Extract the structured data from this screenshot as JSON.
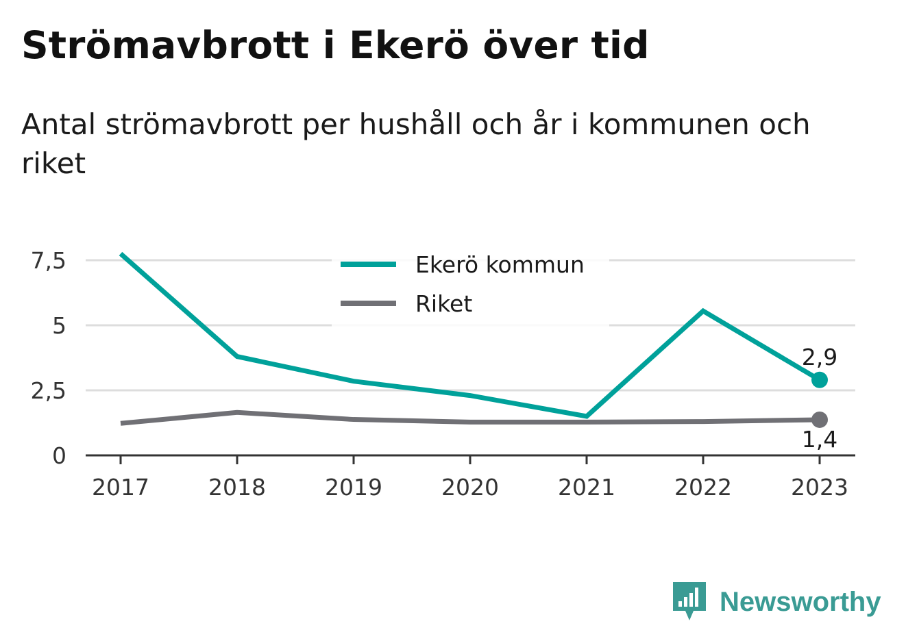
{
  "title": "Strömavbrott i Ekerö över tid",
  "subtitle": "Antal strömavbrott per hushåll och år i kommunen och riket",
  "brand": {
    "name": "Newsworthy",
    "icon": "newsworthy-logo-icon",
    "color": "#3a9b94"
  },
  "chart_data": {
    "type": "line",
    "x": [
      "2017",
      "2018",
      "2019",
      "2020",
      "2021",
      "2022",
      "2023"
    ],
    "y_ticks": [
      {
        "value": 0,
        "label": "0"
      },
      {
        "value": 2.5,
        "label": "2,5"
      },
      {
        "value": 5,
        "label": "5"
      },
      {
        "value": 7.5,
        "label": "7,5"
      }
    ],
    "ylim": [
      0,
      7.5
    ],
    "grid": true,
    "legend_position": "top-center",
    "series": [
      {
        "name": "Ekerö kommun",
        "color": "#00a19a",
        "values": [
          7.75,
          3.8,
          2.85,
          2.3,
          1.5,
          5.55,
          2.9
        ],
        "end_label": "2,9"
      },
      {
        "name": "Riket",
        "color": "#707075",
        "values": [
          1.23,
          1.65,
          1.38,
          1.28,
          1.28,
          1.3,
          1.37
        ],
        "end_label": "1,4"
      }
    ]
  }
}
